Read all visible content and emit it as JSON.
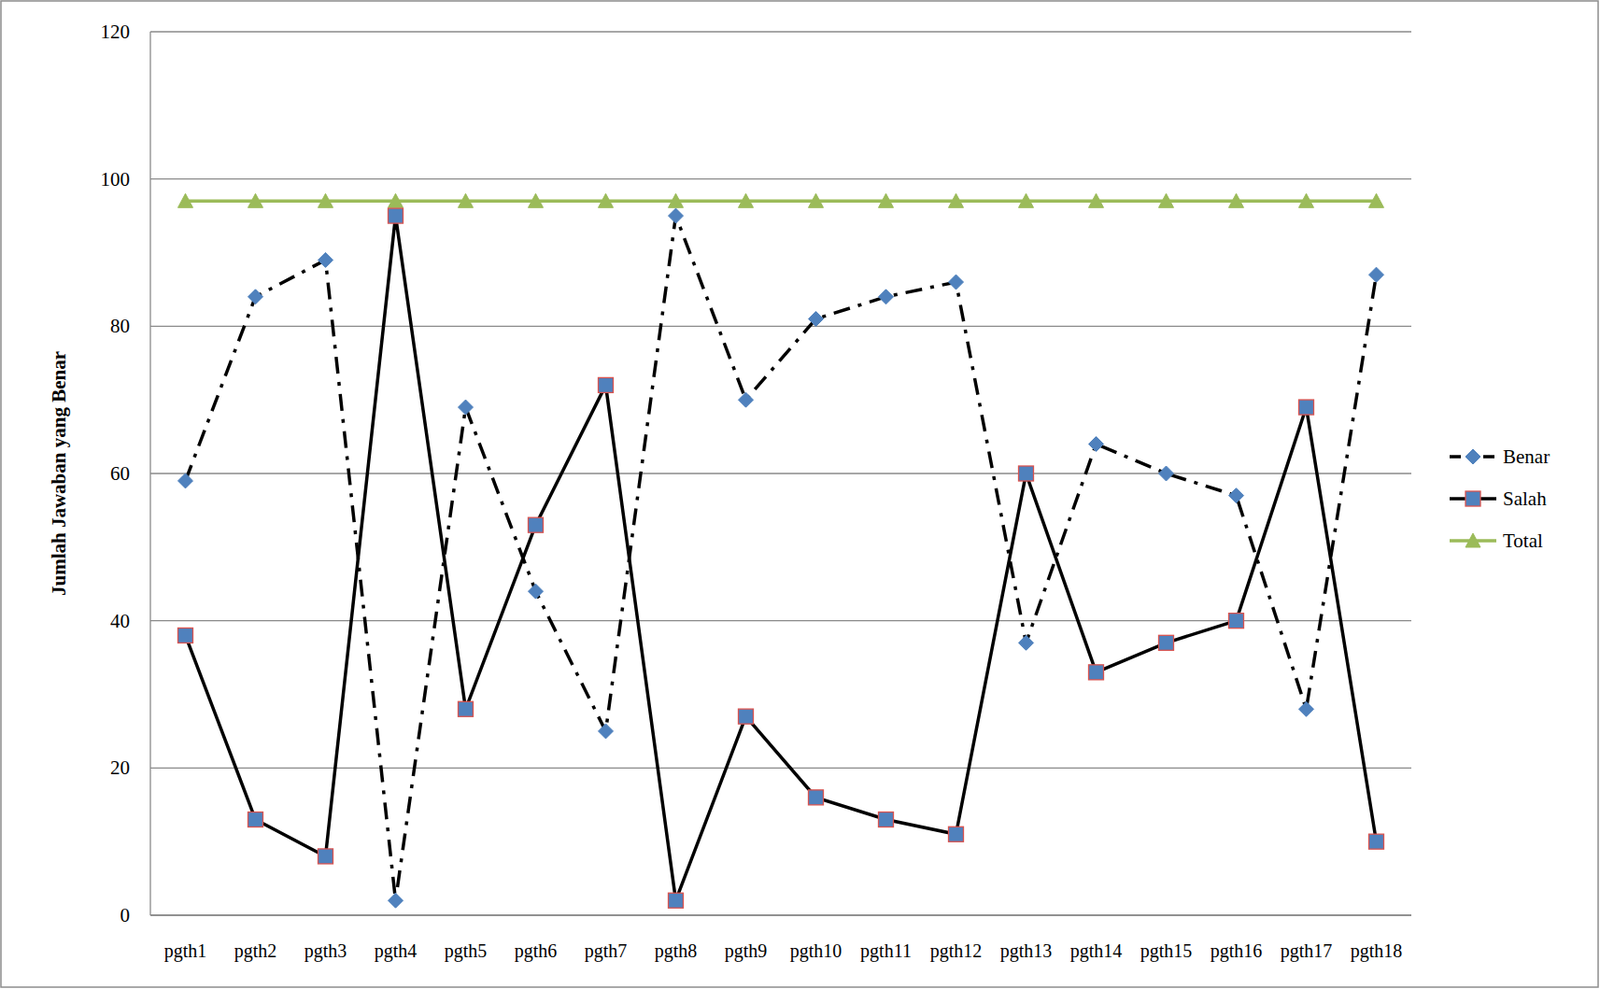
{
  "chart_data": {
    "type": "line",
    "y_label": "Jumlah Jawaban yang Benar",
    "categories": [
      "pgth1",
      "pgth2",
      "pgth3",
      "pgth4",
      "pgth5",
      "pgth6",
      "pgth7",
      "pgth8",
      "pgth9",
      "pgth10",
      "pgth11",
      "pgth12",
      "pgth13",
      "pgth14",
      "pgth15",
      "pgth16",
      "pgth17",
      "pgth18"
    ],
    "series": [
      {
        "name": "Benar",
        "color": "#4f81bd",
        "marker": "diamond",
        "line_style": "dashdot",
        "values": [
          59,
          84,
          89,
          2,
          69,
          44,
          25,
          95,
          70,
          81,
          84,
          86,
          37,
          64,
          60,
          57,
          28,
          87
        ]
      },
      {
        "name": "Salah",
        "color": "#4f81bd",
        "marker": "square",
        "line_style": "solid",
        "values": [
          38,
          13,
          8,
          95,
          28,
          53,
          72,
          2,
          27,
          16,
          13,
          11,
          60,
          33,
          37,
          40,
          69,
          10
        ]
      },
      {
        "name": "Total",
        "color": "#9bbb59",
        "marker": "triangle",
        "line_style": "solid",
        "values": [
          97,
          97,
          97,
          97,
          97,
          97,
          97,
          97,
          97,
          97,
          97,
          97,
          97,
          97,
          97,
          97,
          97,
          97
        ]
      }
    ],
    "ylim": [
      0,
      120
    ],
    "yticks": [
      0,
      20,
      40,
      60,
      80,
      100,
      120
    ],
    "grid": true,
    "legend": "right"
  }
}
